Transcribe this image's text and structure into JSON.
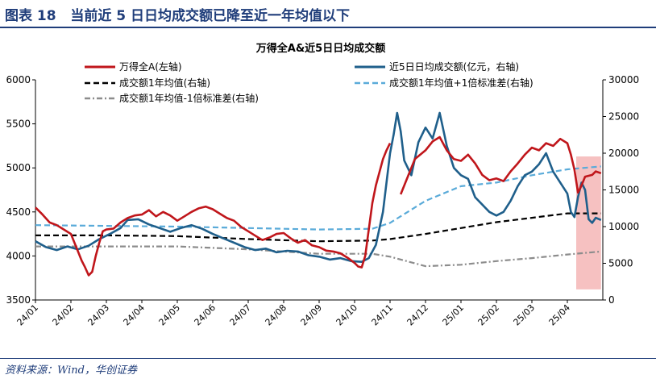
{
  "figure": {
    "label": "图表 18",
    "caption": "当前近 5 日日均成交额已降至近一年均值以下",
    "source": "资料来源：Wind，华创证券"
  },
  "chart_data": {
    "type": "line",
    "title": "万得全A&近5日日均成交额",
    "x_tick_labels": [
      "24/01",
      "24/02",
      "24/03",
      "24/04",
      "24/05",
      "24/06",
      "24/07",
      "24/08",
      "24/09",
      "24/10",
      "24/11",
      "24/12",
      "25/01",
      "25/02",
      "25/03",
      "25/04"
    ],
    "y_left": {
      "ylim": [
        3500,
        6000
      ],
      "ticks": [
        3500,
        4000,
        4500,
        5000,
        5500,
        6000
      ]
    },
    "y_right": {
      "ylim": [
        0,
        30000
      ],
      "ticks": [
        0,
        5000,
        10000,
        15000,
        20000,
        25000,
        30000
      ]
    },
    "grid": false,
    "legend_placement": "top",
    "highlight": {
      "from_month": 15.25,
      "to_month": 15.95,
      "color": "#f4b6b6"
    },
    "series": [
      {
        "name": "万得全A(左轴)",
        "axis": "left",
        "color": "#c0161b",
        "style": "solid",
        "points": [
          [
            0.0,
            4550
          ],
          [
            0.2,
            4470
          ],
          [
            0.4,
            4380
          ],
          [
            0.6,
            4350
          ],
          [
            0.8,
            4300
          ],
          [
            1.0,
            4250
          ],
          [
            1.1,
            4150
          ],
          [
            1.2,
            4050
          ],
          [
            1.3,
            3950
          ],
          [
            1.4,
            3870
          ],
          [
            1.5,
            3780
          ],
          [
            1.6,
            3820
          ],
          [
            1.7,
            4000
          ],
          [
            1.8,
            4150
          ],
          [
            1.9,
            4280
          ],
          [
            2.0,
            4300
          ],
          [
            2.2,
            4310
          ],
          [
            2.4,
            4380
          ],
          [
            2.6,
            4430
          ],
          [
            2.8,
            4460
          ],
          [
            3.0,
            4470
          ],
          [
            3.2,
            4520
          ],
          [
            3.4,
            4450
          ],
          [
            3.6,
            4500
          ],
          [
            3.8,
            4460
          ],
          [
            4.0,
            4400
          ],
          [
            4.2,
            4450
          ],
          [
            4.4,
            4500
          ],
          [
            4.6,
            4540
          ],
          [
            4.8,
            4560
          ],
          [
            5.0,
            4530
          ],
          [
            5.2,
            4480
          ],
          [
            5.4,
            4430
          ],
          [
            5.6,
            4400
          ],
          [
            5.8,
            4330
          ],
          [
            6.0,
            4280
          ],
          [
            6.2,
            4230
          ],
          [
            6.4,
            4180
          ],
          [
            6.6,
            4210
          ],
          [
            6.8,
            4250
          ],
          [
            7.0,
            4260
          ],
          [
            7.2,
            4200
          ],
          [
            7.4,
            4150
          ],
          [
            7.6,
            4180
          ],
          [
            7.8,
            4120
          ],
          [
            8.0,
            4100
          ],
          [
            8.2,
            4060
          ],
          [
            8.4,
            4050
          ],
          [
            8.6,
            4030
          ],
          [
            8.8,
            3980
          ],
          [
            9.0,
            3920
          ],
          [
            9.1,
            3880
          ],
          [
            9.2,
            3870
          ],
          [
            9.3,
            4000
          ],
          [
            9.4,
            4300
          ],
          [
            9.5,
            4600
          ],
          [
            9.6,
            4800
          ],
          [
            9.7,
            4950
          ],
          [
            9.8,
            5100
          ],
          [
            9.9,
            5200
          ],
          [
            10.0,
            5280
          ]
        ]
      },
      {
        "name": "万得全A(左轴)",
        "axis": "left",
        "color": "#c0161b",
        "style": "solid",
        "points": [
          [
            10.3,
            4700
          ],
          [
            10.5,
            4900
          ],
          [
            10.7,
            5100
          ],
          [
            11.0,
            5200
          ],
          [
            11.2,
            5300
          ],
          [
            11.4,
            5350
          ],
          [
            11.6,
            5200
          ],
          [
            11.8,
            5100
          ],
          [
            12.0,
            5080
          ],
          [
            12.2,
            5150
          ],
          [
            12.4,
            5050
          ],
          [
            12.6,
            4920
          ],
          [
            12.8,
            4860
          ],
          [
            13.0,
            4880
          ],
          [
            13.2,
            4850
          ],
          [
            13.4,
            4960
          ],
          [
            13.6,
            5050
          ],
          [
            13.8,
            5150
          ],
          [
            14.0,
            5230
          ],
          [
            14.2,
            5200
          ],
          [
            14.4,
            5280
          ],
          [
            14.6,
            5250
          ],
          [
            14.8,
            5330
          ],
          [
            15.0,
            5280
          ],
          [
            15.1,
            5150
          ],
          [
            15.2,
            4980
          ],
          [
            15.3,
            4720
          ],
          [
            15.4,
            4800
          ],
          [
            15.5,
            4900
          ],
          [
            15.7,
            4920
          ],
          [
            15.8,
            4960
          ],
          [
            15.95,
            4940
          ]
        ]
      },
      {
        "name": "近5日日均成交额(亿元，右轴)",
        "axis": "right",
        "color": "#1f5f8b",
        "style": "solid",
        "points": [
          [
            0.0,
            8000
          ],
          [
            0.3,
            7200
          ],
          [
            0.6,
            6800
          ],
          [
            0.9,
            7300
          ],
          [
            1.2,
            6900
          ],
          [
            1.5,
            7400
          ],
          [
            1.8,
            8300
          ],
          [
            2.1,
            9000
          ],
          [
            2.4,
            9800
          ],
          [
            2.6,
            10900
          ],
          [
            2.9,
            11000
          ],
          [
            3.2,
            10300
          ],
          [
            3.5,
            9800
          ],
          [
            3.8,
            9300
          ],
          [
            4.1,
            9800
          ],
          [
            4.4,
            10200
          ],
          [
            4.7,
            9700
          ],
          [
            5.0,
            9000
          ],
          [
            5.3,
            8400
          ],
          [
            5.6,
            7800
          ],
          [
            5.9,
            7200
          ],
          [
            6.2,
            6800
          ],
          [
            6.5,
            7000
          ],
          [
            6.8,
            6500
          ],
          [
            7.1,
            6700
          ],
          [
            7.4,
            6600
          ],
          [
            7.7,
            6100
          ],
          [
            8.0,
            5900
          ],
          [
            8.3,
            5500
          ],
          [
            8.6,
            5700
          ],
          [
            8.9,
            5300
          ],
          [
            9.2,
            5200
          ],
          [
            9.4,
            5700
          ],
          [
            9.6,
            7500
          ],
          [
            9.8,
            12000
          ],
          [
            10.0,
            20000
          ],
          [
            10.1,
            22500
          ],
          [
            10.2,
            25500
          ],
          [
            10.3,
            23000
          ],
          [
            10.4,
            19000
          ],
          [
            10.6,
            17000
          ],
          [
            10.8,
            21500
          ],
          [
            11.0,
            23500
          ],
          [
            11.2,
            22000
          ],
          [
            11.4,
            25500
          ],
          [
            11.6,
            21000
          ],
          [
            11.8,
            18000
          ],
          [
            12.0,
            17000
          ],
          [
            12.2,
            16500
          ],
          [
            12.4,
            14000
          ],
          [
            12.6,
            13000
          ],
          [
            12.8,
            12000
          ],
          [
            13.0,
            11500
          ],
          [
            13.2,
            12000
          ],
          [
            13.4,
            13500
          ],
          [
            13.6,
            15500
          ],
          [
            13.8,
            17000
          ],
          [
            14.0,
            17500
          ],
          [
            14.2,
            18500
          ],
          [
            14.4,
            20000
          ],
          [
            14.6,
            17500
          ],
          [
            14.8,
            16000
          ],
          [
            15.0,
            14500
          ],
          [
            15.1,
            12000
          ],
          [
            15.2,
            11300
          ],
          [
            15.3,
            14000
          ],
          [
            15.4,
            16000
          ],
          [
            15.5,
            15000
          ],
          [
            15.6,
            11000
          ],
          [
            15.7,
            10500
          ],
          [
            15.8,
            11200
          ],
          [
            15.95,
            10900
          ]
        ]
      },
      {
        "name": "成交额1年均值(右轴)",
        "axis": "right",
        "color": "#000000",
        "style": "dashed",
        "points": [
          [
            0.0,
            8800
          ],
          [
            2.0,
            8800
          ],
          [
            4.0,
            8700
          ],
          [
            6.0,
            8300
          ],
          [
            8.0,
            8000
          ],
          [
            9.5,
            8100
          ],
          [
            10.0,
            8300
          ],
          [
            11.0,
            9000
          ],
          [
            12.0,
            9800
          ],
          [
            13.0,
            10600
          ],
          [
            14.0,
            11200
          ],
          [
            15.0,
            11800
          ],
          [
            15.95,
            11800
          ]
        ]
      },
      {
        "name": "成交额1年均值+1倍标准差(右轴)",
        "axis": "right",
        "color": "#5aabd9",
        "style": "dashed",
        "points": [
          [
            0.0,
            10200
          ],
          [
            2.0,
            10100
          ],
          [
            4.0,
            10000
          ],
          [
            6.0,
            9800
          ],
          [
            8.0,
            9600
          ],
          [
            9.5,
            9700
          ],
          [
            10.0,
            10500
          ],
          [
            11.0,
            13500
          ],
          [
            12.0,
            15500
          ],
          [
            13.0,
            16000
          ],
          [
            14.0,
            17000
          ],
          [
            15.0,
            17800
          ],
          [
            15.95,
            18200
          ]
        ]
      },
      {
        "name": "成交额1年均值-1倍标准差(右轴)",
        "axis": "right",
        "color": "#8c8c8c",
        "style": "dashdot",
        "points": [
          [
            0.0,
            7300
          ],
          [
            2.0,
            7300
          ],
          [
            4.0,
            7300
          ],
          [
            6.0,
            6900
          ],
          [
            8.0,
            6300
          ],
          [
            9.5,
            6300
          ],
          [
            10.0,
            5900
          ],
          [
            11.0,
            4600
          ],
          [
            12.0,
            4800
          ],
          [
            13.0,
            5300
          ],
          [
            14.0,
            5700
          ],
          [
            15.0,
            6200
          ],
          [
            15.95,
            6600
          ]
        ]
      }
    ],
    "legend": [
      {
        "label": "万得全A(左轴)",
        "color": "#c0161b",
        "style": "solid"
      },
      {
        "label": "近5日日均成交额(亿元，右轴)",
        "color": "#1f5f8b",
        "style": "solid"
      },
      {
        "label": "成交额1年均值(右轴)",
        "color": "#000000",
        "style": "dashed"
      },
      {
        "label": "成交额1年均值+1倍标准差(右轴)",
        "color": "#5aabd9",
        "style": "dashed"
      },
      {
        "label": "成交额1年均值-1倍标准差(右轴)",
        "color": "#8c8c8c",
        "style": "dashdot"
      }
    ]
  }
}
